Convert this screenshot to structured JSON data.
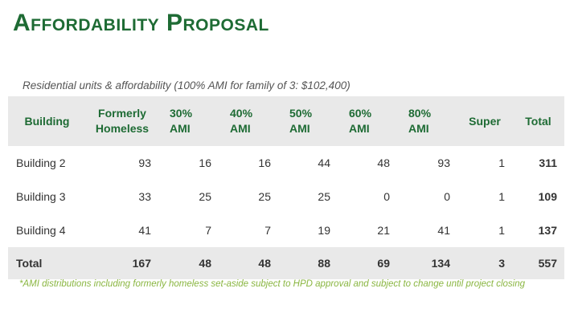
{
  "title": "Affordability Proposal",
  "subtitle": "Residential units & affordability (100% AMI for family of 3: $102,400)",
  "columns": [
    "Building",
    "Formerly Homeless",
    "30% AMI",
    "40% AMI",
    "50% AMI",
    "60% AMI",
    "80% AMI",
    "Super",
    "Total"
  ],
  "rows": [
    {
      "building": "Building 2",
      "formerly_homeless": "93",
      "ami30": "16",
      "ami40": "16",
      "ami50": "44",
      "ami60": "48",
      "ami80": "93",
      "super": "1",
      "total": "311"
    },
    {
      "building": "Building 3",
      "formerly_homeless": "33",
      "ami30": "25",
      "ami40": "25",
      "ami50": "25",
      "ami60": "0",
      "ami80": "0",
      "super": "1",
      "total": "109"
    },
    {
      "building": "Building 4",
      "formerly_homeless": "41",
      "ami30": "7",
      "ami40": "7",
      "ami50": "19",
      "ami60": "21",
      "ami80": "41",
      "super": "1",
      "total": "137"
    }
  ],
  "totals": {
    "label": "Total",
    "formerly_homeless": "167",
    "ami30": "48",
    "ami40": "48",
    "ami50": "88",
    "ami60": "69",
    "ami80": "134",
    "super": "3",
    "total": "557"
  },
  "footnote": "*AMI distributions including formerly homeless set-aside subject to HPD approval and subject to change until project closing",
  "colors": {
    "title_green": "#1e6b34",
    "footnote_green": "#8ab641",
    "header_bg": "#e9e9e9"
  }
}
